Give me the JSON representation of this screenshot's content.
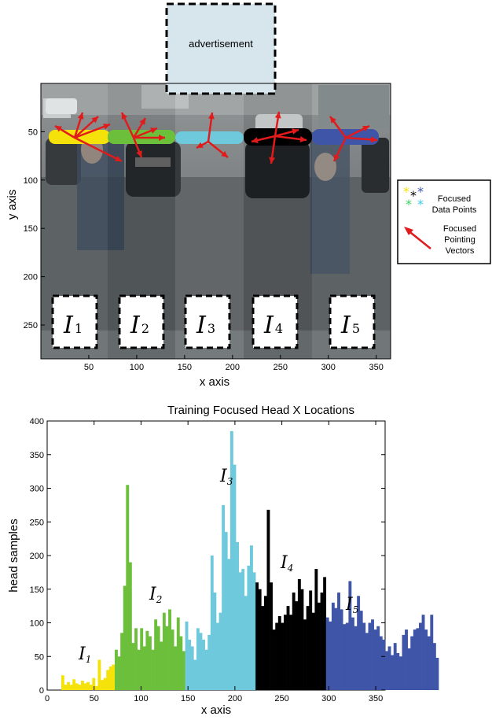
{
  "advertisement_label": "advertisement",
  "top_figure": {
    "ylabel": "y axis",
    "xlabel": "x axis",
    "x_ticks": [
      "50",
      "100",
      "150",
      "200",
      "250",
      "300",
      "350"
    ],
    "y_ticks": [
      "50",
      "100",
      "150",
      "200",
      "250"
    ],
    "regions": [
      {
        "main": "I",
        "sub": "1"
      },
      {
        "main": "I",
        "sub": "2"
      },
      {
        "main": "I",
        "sub": "3"
      },
      {
        "main": "I",
        "sub": "4"
      },
      {
        "main": "I",
        "sub": "5"
      }
    ],
    "region_colors": [
      "#f4e20a",
      "#6cbf3b",
      "#6ec9dc",
      "#000000",
      "#3e55a8"
    ]
  },
  "legend": {
    "data_points_label_1": "Focused",
    "data_points_label_2": "Data Points",
    "vectors_label_1": "Focused",
    "vectors_label_2": "Pointing",
    "vectors_label_3": "Vectors",
    "star_colors": [
      "#f4e20a",
      "#000000",
      "#3e55a8",
      "#3bd35a",
      "#3cc6e8"
    ],
    "arrow_color": "#e11b1b"
  },
  "chart_data": {
    "type": "bar",
    "title": "Training Focused Head X Locations",
    "xlabel": "x axis",
    "ylabel": "head samples",
    "xlim": [
      0,
      360
    ],
    "ylim": [
      0,
      400
    ],
    "x_ticks": [
      "0",
      "50",
      "100",
      "150",
      "200",
      "250",
      "300",
      "350"
    ],
    "y_ticks": [
      "0",
      "50",
      "100",
      "150",
      "200",
      "250",
      "300",
      "350",
      "400"
    ],
    "bin_width": 3,
    "x_start": 15,
    "values": [
      22,
      8,
      12,
      8,
      16,
      10,
      8,
      14,
      10,
      12,
      8,
      18,
      6,
      45,
      15,
      18,
      30,
      35,
      38,
      60,
      50,
      85,
      155,
      305,
      190,
      70,
      92,
      60,
      92,
      65,
      88,
      80,
      60,
      105,
      95,
      72,
      115,
      95,
      120,
      90,
      65,
      108,
      80,
      58,
      102,
      75,
      65,
      45,
      92,
      85,
      75,
      60,
      82,
      200,
      145,
      100,
      115,
      275,
      235,
      195,
      385,
      335,
      220,
      175,
      180,
      140,
      185,
      215,
      175,
      160,
      150,
      125,
      140,
      268,
      160,
      90,
      100,
      110,
      100,
      112,
      125,
      112,
      145,
      132,
      165,
      150,
      105,
      125,
      148,
      115,
      180,
      130,
      145,
      168,
      108,
      102,
      130,
      122,
      145,
      120,
      98,
      100,
      162,
      108,
      95,
      140,
      118,
      100,
      85,
      100,
      105,
      90,
      95,
      80,
      75,
      58,
      65,
      52,
      70,
      55,
      50,
      82,
      90,
      62,
      80,
      90,
      92,
      100,
      112,
      90,
      80,
      112,
      70,
      48
    ],
    "regions": [
      {
        "label": "I1",
        "x_from": 15,
        "x_to": 72,
        "color": "#f4e20a"
      },
      {
        "label": "I2",
        "x_from": 72,
        "x_to": 148,
        "color": "#6cbf3b"
      },
      {
        "label": "I3",
        "x_from": 148,
        "x_to": 223,
        "color": "#6ec9dc"
      },
      {
        "label": "I4",
        "x_from": 223,
        "x_to": 298,
        "color": "#000000"
      },
      {
        "label": "I5",
        "x_from": 298,
        "x_to": 360,
        "color": "#3e55a8"
      }
    ]
  }
}
